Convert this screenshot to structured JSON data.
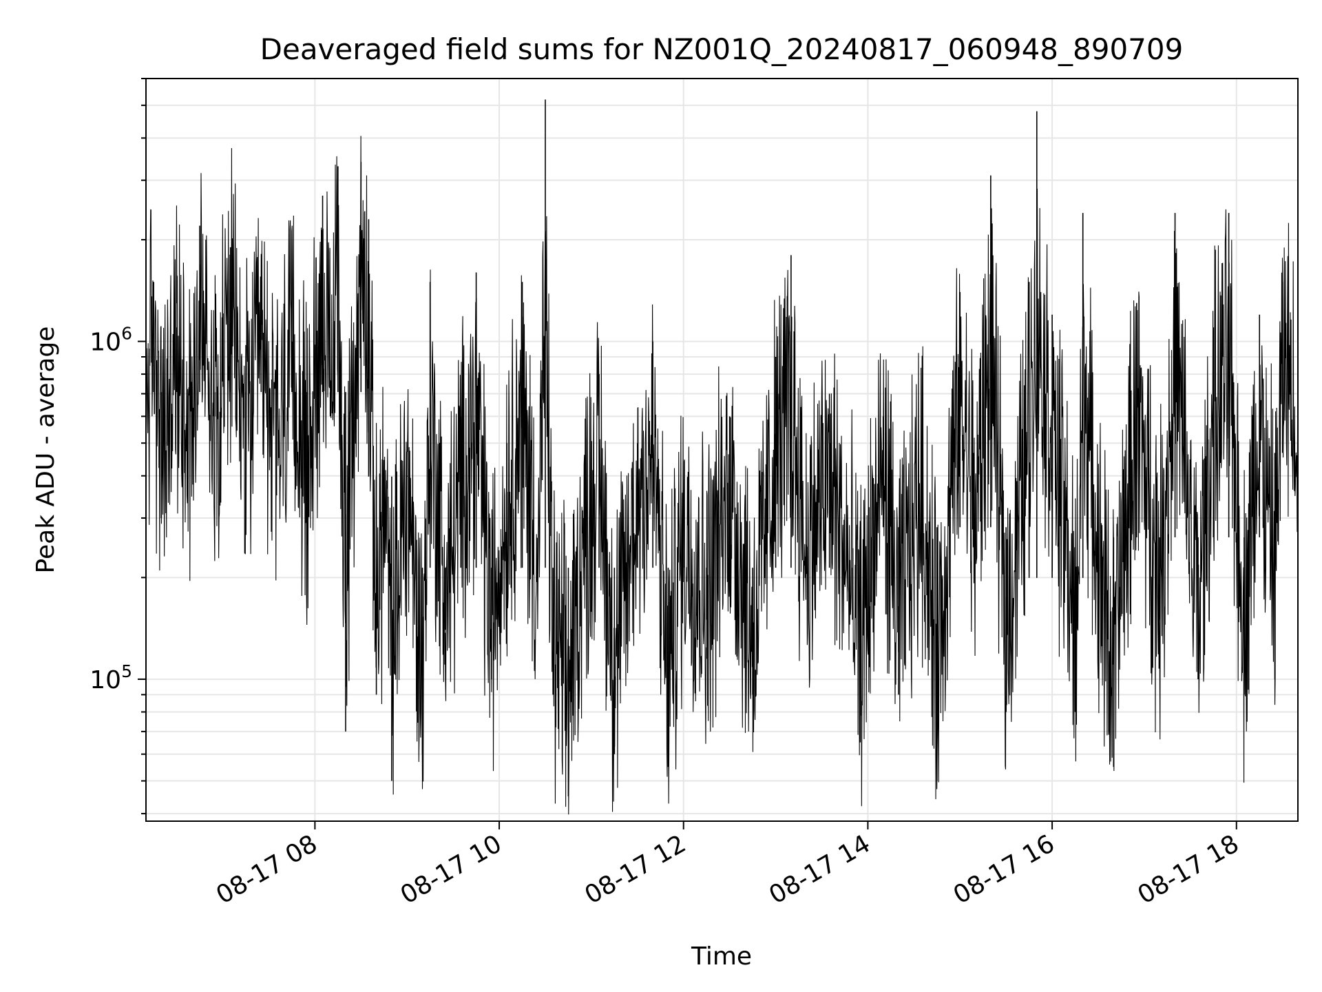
{
  "chart_data": {
    "type": "line",
    "title": "Deaveraged field sums for NZ001Q_20240817_060948_890709",
    "xlabel": "Time",
    "ylabel": "Peak ADU - average",
    "y_scale": "log",
    "ylim": [
      38000,
      6000000
    ],
    "y_major_ticks": [
      {
        "value": 100000,
        "base": "10",
        "exp": "5"
      },
      {
        "value": 1000000,
        "base": "10",
        "exp": "6"
      }
    ],
    "xlim": [
      "2024-08-17 06:10",
      "2024-08-17 18:40"
    ],
    "x_ticks": [
      {
        "t": "2024-08-17 08:00",
        "label": "08-17 08"
      },
      {
        "t": "2024-08-17 10:00",
        "label": "08-17 10"
      },
      {
        "t": "2024-08-17 12:00",
        "label": "08-17 12"
      },
      {
        "t": "2024-08-17 14:00",
        "label": "08-17 14"
      },
      {
        "t": "2024-08-17 16:00",
        "label": "08-17 16"
      },
      {
        "t": "2024-08-17 18:00",
        "label": "08-17 18"
      }
    ],
    "grid": true,
    "line_color": "#000000",
    "grid_color": "#e6e6e6",
    "series": [
      {
        "values_sampled": [
          [
            "2024-08-17 06:10",
            700000
          ],
          [
            "2024-08-17 06:15",
            1500000
          ],
          [
            "2024-08-17 06:20",
            300000
          ],
          [
            "2024-08-17 06:30",
            1100000
          ],
          [
            "2024-08-17 06:40",
            500000
          ],
          [
            "2024-08-17 06:45",
            2200000
          ],
          [
            "2024-08-17 06:55",
            600000
          ],
          [
            "2024-08-17 07:05",
            1900000
          ],
          [
            "2024-08-17 07:15",
            400000
          ],
          [
            "2024-08-17 07:25",
            1200000
          ],
          [
            "2024-08-17 07:35",
            350000
          ],
          [
            "2024-08-17 07:45",
            1000000
          ],
          [
            "2024-08-17 07:55",
            250000
          ],
          [
            "2024-08-17 08:05",
            2700000
          ],
          [
            "2024-08-17 08:10",
            600000
          ],
          [
            "2024-08-17 08:15",
            3300000
          ],
          [
            "2024-08-17 08:20",
            70000
          ],
          [
            "2024-08-17 08:30",
            3400000
          ],
          [
            "2024-08-17 08:35",
            2300000
          ],
          [
            "2024-08-17 08:40",
            90000
          ],
          [
            "2024-08-17 08:45",
            300000
          ],
          [
            "2024-08-17 08:50",
            50000
          ],
          [
            "2024-08-17 09:00",
            400000
          ],
          [
            "2024-08-17 09:10",
            60000
          ],
          [
            "2024-08-17 09:15",
            1500000
          ],
          [
            "2024-08-17 09:25",
            140000
          ],
          [
            "2024-08-17 09:35",
            600000
          ],
          [
            "2024-08-17 09:45",
            1600000
          ],
          [
            "2024-08-17 09:55",
            100000
          ],
          [
            "2024-08-17 10:05",
            500000
          ],
          [
            "2024-08-17 10:15",
            1500000
          ],
          [
            "2024-08-17 10:25",
            200000
          ],
          [
            "2024-08-17 10:30",
            5200000
          ],
          [
            "2024-08-17 10:35",
            90000
          ],
          [
            "2024-08-17 10:45",
            45000
          ],
          [
            "2024-08-17 10:55",
            300000
          ],
          [
            "2024-08-17 11:05",
            800000
          ],
          [
            "2024-08-17 11:15",
            60000
          ],
          [
            "2024-08-17 11:30",
            500000
          ],
          [
            "2024-08-17 11:40",
            1000000
          ],
          [
            "2024-08-17 11:50",
            55000
          ],
          [
            "2024-08-17 12:00",
            350000
          ],
          [
            "2024-08-17 12:15",
            150000
          ],
          [
            "2024-08-17 12:30",
            600000
          ],
          [
            "2024-08-17 12:45",
            90000
          ],
          [
            "2024-08-17 13:00",
            900000
          ],
          [
            "2024-08-17 13:10",
            1800000
          ],
          [
            "2024-08-17 13:20",
            250000
          ],
          [
            "2024-08-17 13:35",
            700000
          ],
          [
            "2024-08-17 13:50",
            150000
          ],
          [
            "2024-08-17 13:55",
            65000
          ],
          [
            "2024-08-17 14:10",
            600000
          ],
          [
            "2024-08-17 14:20",
            90000
          ],
          [
            "2024-08-17 14:35",
            500000
          ],
          [
            "2024-08-17 14:45",
            50000
          ],
          [
            "2024-08-17 15:00",
            1400000
          ],
          [
            "2024-08-17 15:10",
            300000
          ],
          [
            "2024-08-17 15:20",
            3100000
          ],
          [
            "2024-08-17 15:30",
            80000
          ],
          [
            "2024-08-17 15:45",
            1500000
          ],
          [
            "2024-08-17 15:50",
            4800000
          ],
          [
            "2024-08-17 16:00",
            1200000
          ],
          [
            "2024-08-17 16:10",
            300000
          ],
          [
            "2024-08-17 16:15",
            80000
          ],
          [
            "2024-08-17 16:20",
            2400000
          ],
          [
            "2024-08-17 16:30",
            200000
          ],
          [
            "2024-08-17 16:40",
            55000
          ],
          [
            "2024-08-17 16:55",
            1300000
          ],
          [
            "2024-08-17 17:10",
            150000
          ],
          [
            "2024-08-17 17:20",
            2400000
          ],
          [
            "2024-08-17 17:35",
            100000
          ],
          [
            "2024-08-17 17:45",
            1100000
          ],
          [
            "2024-08-17 17:55",
            2400000
          ],
          [
            "2024-08-17 18:05",
            90000
          ],
          [
            "2024-08-17 18:15",
            1200000
          ],
          [
            "2024-08-17 18:25",
            100000
          ],
          [
            "2024-08-17 18:30",
            1500000
          ],
          [
            "2024-08-17 18:40",
            800000
          ]
        ]
      }
    ]
  }
}
